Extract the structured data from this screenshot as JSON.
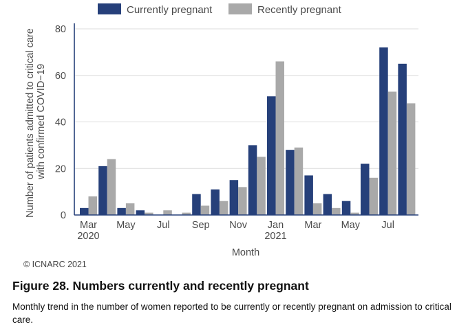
{
  "chart_data": {
    "type": "bar",
    "title": "",
    "xlabel": "Month",
    "ylabel_lines": [
      "Number of patients admitted to critical care",
      "with confirmed COVID−19"
    ],
    "ylim": [
      0,
      80
    ],
    "yticks": [
      0,
      20,
      40,
      60,
      80
    ],
    "grid": true,
    "legend_position": "top",
    "categories": [
      "Mar 2020",
      "Apr 2020",
      "May 2020",
      "Jun 2020",
      "Jul 2020",
      "Aug 2020",
      "Sep 2020",
      "Oct 2020",
      "Nov 2020",
      "Dec 2020",
      "Jan 2021",
      "Feb 2021",
      "Mar 2021",
      "Apr 2021",
      "May 2021",
      "Jun 2021",
      "Jul 2021",
      "Aug 2021"
    ],
    "xtick_labels": [
      {
        "index": 0,
        "line1": "Mar",
        "line2": "2020"
      },
      {
        "index": 2,
        "line1": "May",
        "line2": ""
      },
      {
        "index": 4,
        "line1": "Jul",
        "line2": ""
      },
      {
        "index": 6,
        "line1": "Sep",
        "line2": ""
      },
      {
        "index": 8,
        "line1": "Nov",
        "line2": ""
      },
      {
        "index": 10,
        "line1": "Jan",
        "line2": "2021"
      },
      {
        "index": 12,
        "line1": "Mar",
        "line2": ""
      },
      {
        "index": 14,
        "line1": "May",
        "line2": ""
      },
      {
        "index": 16,
        "line1": "Jul",
        "line2": ""
      }
    ],
    "series": [
      {
        "name": "Currently pregnant",
        "color": "#26407a",
        "values": [
          3,
          21,
          3,
          2,
          0,
          0,
          9,
          11,
          15,
          30,
          51,
          28,
          17,
          9,
          6,
          22,
          72,
          65
        ]
      },
      {
        "name": "Recently pregnant",
        "color": "#a9a9a9",
        "values": [
          8,
          24,
          5,
          1,
          2,
          1,
          4,
          6,
          12,
          25,
          66,
          29,
          5,
          3,
          1,
          16,
          53,
          48
        ]
      }
    ]
  },
  "copyright": "© ICNARC 2021",
  "figure": {
    "title": "Figure 28. Numbers currently and recently pregnant",
    "caption": "Monthly trend in the number of women reported to be currently or recently pregnant on admission to critical care."
  }
}
